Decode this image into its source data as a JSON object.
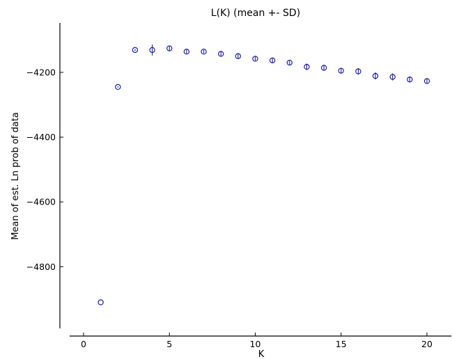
{
  "chart_data": {
    "type": "scatter",
    "title": "L(K) (mean +- SD)",
    "xlabel": "K",
    "ylabel": "Mean of est. Ln prob of data",
    "xlim": [
      -1,
      21.5
    ],
    "ylim": [
      -4990,
      -4070
    ],
    "xticks": [
      0,
      5,
      10,
      15,
      20
    ],
    "yticks": [
      -4800,
      -4600,
      -4400,
      -4200
    ],
    "xtick_labels": [
      "0",
      "5",
      "10",
      "15",
      "20"
    ],
    "ytick_labels": [
      "−4800",
      "−4600",
      "−4400",
      "−4200"
    ],
    "grid": false,
    "marker": "open circle",
    "color": "#1f1fa8",
    "points": [
      {
        "x": 1,
        "y": -4910,
        "sd": 0
      },
      {
        "x": 2,
        "y": -4245,
        "sd": 2
      },
      {
        "x": 3,
        "y": -4131,
        "sd": 3
      },
      {
        "x": 4,
        "y": -4131,
        "sd": 17
      },
      {
        "x": 5,
        "y": -4126,
        "sd": 8
      },
      {
        "x": 6,
        "y": -4136,
        "sd": 6
      },
      {
        "x": 7,
        "y": -4136,
        "sd": 5
      },
      {
        "x": 8,
        "y": -4143,
        "sd": 8
      },
      {
        "x": 9,
        "y": -4150,
        "sd": 7
      },
      {
        "x": 10,
        "y": -4158,
        "sd": 6
      },
      {
        "x": 11,
        "y": -4163,
        "sd": 7
      },
      {
        "x": 12,
        "y": -4170,
        "sd": 6
      },
      {
        "x": 13,
        "y": -4183,
        "sd": 10
      },
      {
        "x": 14,
        "y": -4186,
        "sd": 9
      },
      {
        "x": 15,
        "y": -4195,
        "sd": 7
      },
      {
        "x": 16,
        "y": -4197,
        "sd": 10
      },
      {
        "x": 17,
        "y": -4211,
        "sd": 11
      },
      {
        "x": 18,
        "y": -4214,
        "sd": 11
      },
      {
        "x": 19,
        "y": -4222,
        "sd": 9
      },
      {
        "x": 20,
        "y": -4227,
        "sd": 8
      }
    ]
  }
}
